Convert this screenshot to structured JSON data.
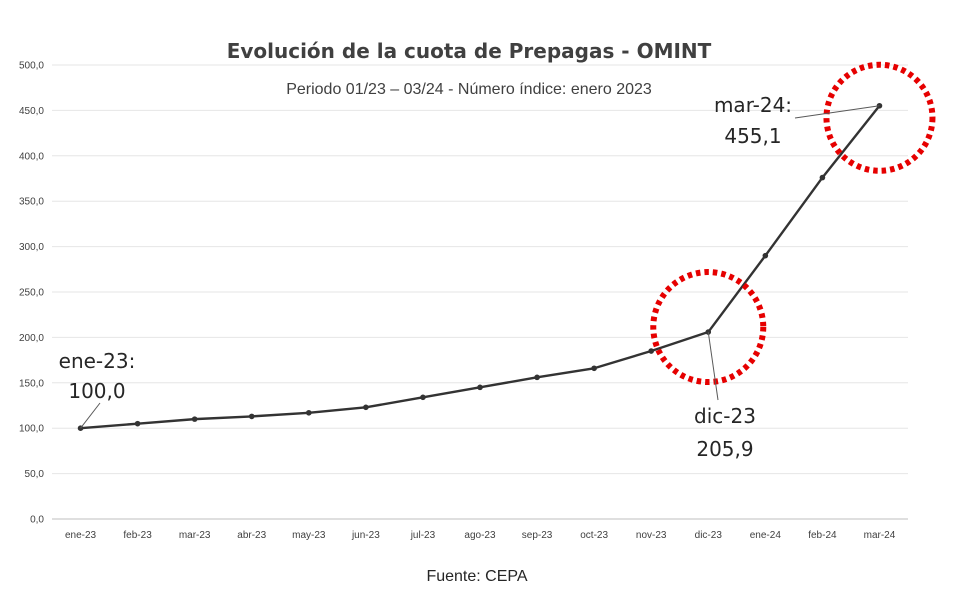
{
  "chart_data": {
    "type": "line",
    "title": "Evolución de la cuota de Prepagas - OMINT",
    "subtitle": "Periodo 01/23 – 03/24 - Número índice: enero 2023",
    "categories": [
      "ene-23",
      "feb-23",
      "mar-23",
      "abr-23",
      "may-23",
      "jun-23",
      "jul-23",
      "ago-23",
      "sep-23",
      "oct-23",
      "nov-23",
      "dic-23",
      "ene-24",
      "feb-24",
      "mar-24"
    ],
    "series": [
      {
        "values": [
          100.0,
          105.0,
          110.0,
          113.0,
          117.0,
          123.0,
          134.0,
          145.0,
          156.0,
          166.0,
          185.0,
          205.9,
          290.0,
          376.0,
          455.1
        ]
      }
    ],
    "y_ticks": [
      "0,0",
      "50,0",
      "100,0",
      "150,0",
      "200,0",
      "250,0",
      "300,0",
      "350,0",
      "400,0",
      "450,0",
      "500,0"
    ],
    "ylim": [
      0,
      500
    ],
    "grid": true,
    "line_color": "#333333",
    "grid_color": "#e6e6e6",
    "highlight_color": "#e60000",
    "annotations": [
      {
        "index": 0,
        "line1": "ene-23:",
        "line2": "100,0"
      },
      {
        "index": 11,
        "line1": "dic-23",
        "line2": "205,9"
      },
      {
        "index": 14,
        "line1": "mar-24:",
        "line2": "455,1"
      }
    ],
    "highlighted_points": [
      11,
      14
    ],
    "source": "Fuente: CEPA"
  }
}
